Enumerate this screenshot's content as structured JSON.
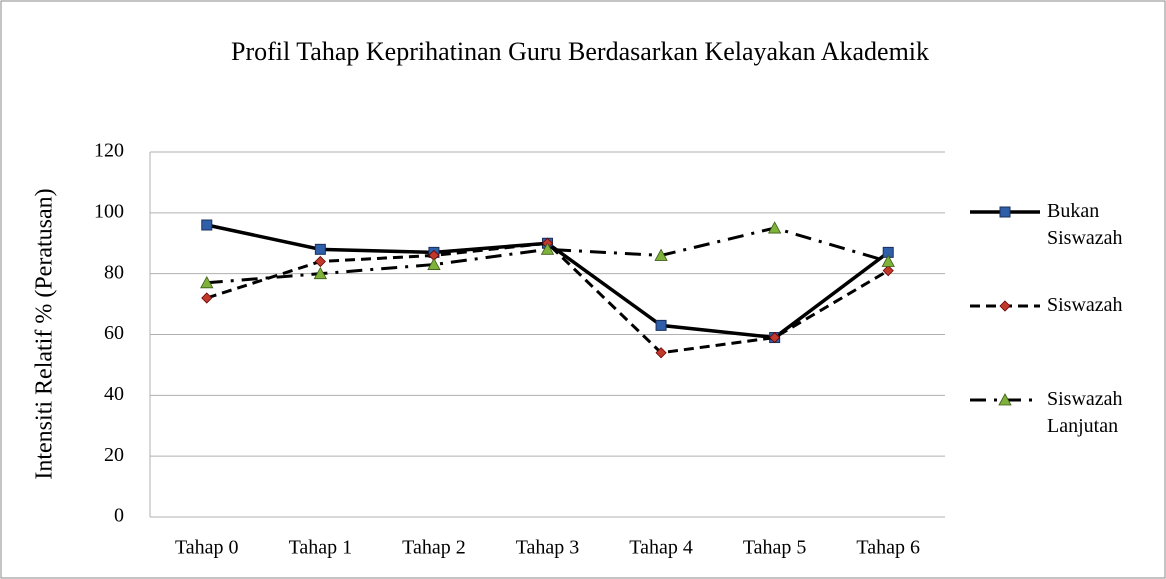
{
  "chart_data": {
    "type": "line",
    "title": "Profil Tahap Keprihatinan Guru Berdasarkan Kelayakan Akademik",
    "y_label": "Intensiti Relatif  %  (Peratusan)",
    "categories": [
      "Tahap 0",
      "Tahap 1",
      "Tahap 2",
      "Tahap 3",
      "Tahap 4",
      "Tahap 5",
      "Tahap 6"
    ],
    "series": [
      {
        "name": "Bukan Siswazah",
        "color": "#2e5fa8",
        "values": [
          96,
          88,
          87,
          90,
          63,
          59,
          87
        ]
      },
      {
        "name": "Siswazah",
        "color": "#c0392b",
        "values": [
          72,
          84,
          86,
          90,
          54,
          59,
          81
        ]
      },
      {
        "name": "Siswazah Lanjutan",
        "color": "#7fb23a",
        "values": [
          77,
          80,
          83,
          88,
          86,
          95,
          84
        ]
      }
    ],
    "ylim": [
      0,
      120
    ],
    "yticks": [
      0,
      20,
      40,
      60,
      80,
      100,
      120
    ],
    "grid": true,
    "legend": "right"
  }
}
